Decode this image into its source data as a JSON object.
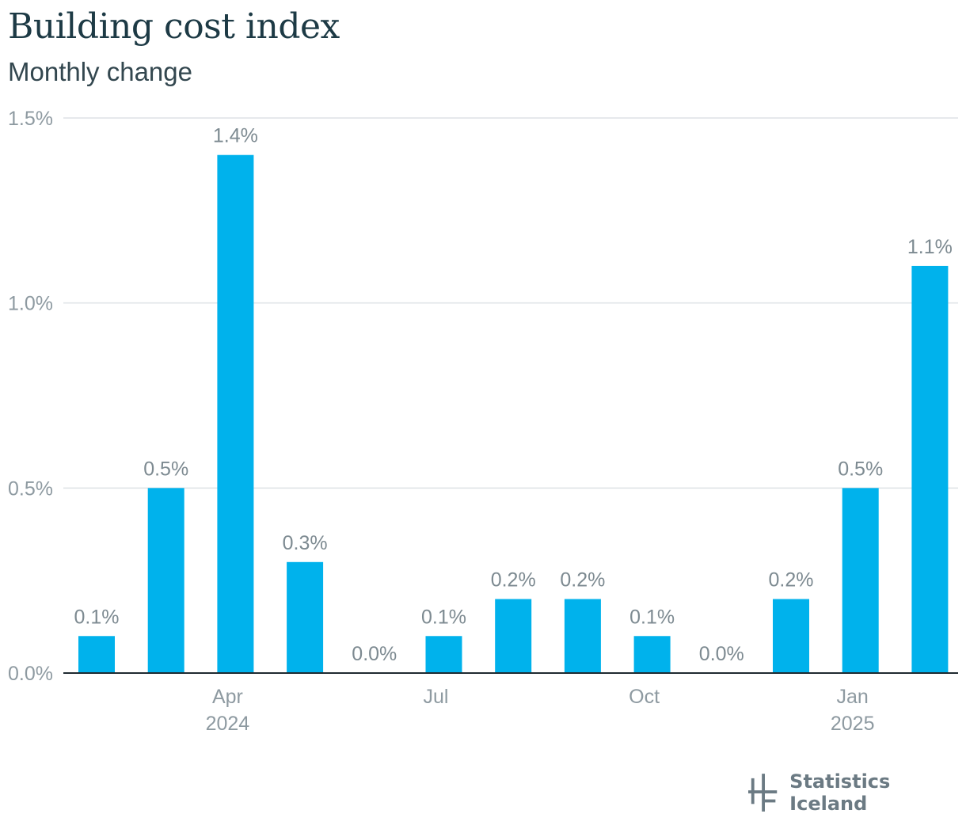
{
  "header": {
    "title": "Building cost index",
    "subtitle": "Monthly change"
  },
  "brand": {
    "name": "Statistics Iceland",
    "logo_icon": "statistics-iceland-logo-icon"
  },
  "colors": {
    "bar": "#00b2ec",
    "title": "#1d3a45",
    "axis_text": "#8e9aa1",
    "grid": "#dde2e5",
    "axis_line": "#1f2a30"
  },
  "chart_data": {
    "type": "bar",
    "title": "Building cost index",
    "subtitle": "Monthly change",
    "categories": [
      "2024-02",
      "2024-03",
      "2024-04",
      "2024-05",
      "2024-06",
      "2024-07",
      "2024-08",
      "2024-09",
      "2024-10",
      "2024-11",
      "2024-12",
      "2025-01",
      "2025-02"
    ],
    "values": [
      0.1,
      0.5,
      1.4,
      0.3,
      0.0,
      0.1,
      0.2,
      0.2,
      0.1,
      0.0,
      0.2,
      0.5,
      1.1
    ],
    "value_labels": [
      "0.1%",
      "0.5%",
      "1.4%",
      "0.3%",
      "0.0%",
      "0.1%",
      "0.2%",
      "0.2%",
      "0.1%",
      "0.0%",
      "0.2%",
      "0.5%",
      "1.1%"
    ],
    "ylim": [
      0,
      1.5
    ],
    "yticks": [
      {
        "value": 0.0,
        "label": "0.0%"
      },
      {
        "value": 0.5,
        "label": "0.5%"
      },
      {
        "value": 1.0,
        "label": "1.0%"
      },
      {
        "value": 1.5,
        "label": "1.5%"
      }
    ],
    "xticks": [
      {
        "category": "2024-04",
        "label": "Apr",
        "sublabel": "2024"
      },
      {
        "category": "2024-07",
        "label": "Jul",
        "sublabel": ""
      },
      {
        "category": "2024-10",
        "label": "Oct",
        "sublabel": ""
      },
      {
        "category": "2025-01",
        "label": "Jan",
        "sublabel": "2025"
      }
    ],
    "xlabel": "",
    "ylabel": "",
    "grid": true,
    "legend": "none"
  }
}
